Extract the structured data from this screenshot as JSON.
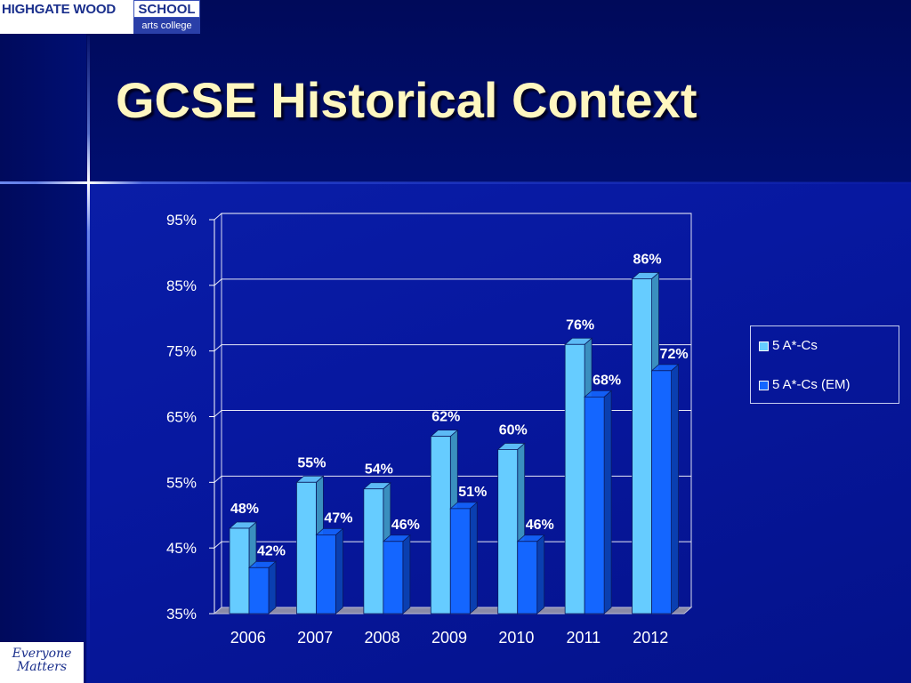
{
  "logo": {
    "main": "HIGHGATE WOOD",
    "school": "SCHOOL",
    "sub": "arts college"
  },
  "title": "GCSE Historical Context",
  "footer_logo": {
    "line1": "Everyone",
    "line2": "Matters"
  },
  "colors": {
    "series1_front": "#66ccff",
    "series1_side": "#3a8fbf",
    "series2_front": "#1466ff",
    "series2_side": "#0a3fb0",
    "label": "#ffffff",
    "gridline": "#ffffff"
  },
  "chart_data": {
    "type": "bar",
    "categories": [
      "2006",
      "2007",
      "2008",
      "2009",
      "2010",
      "2011",
      "2012"
    ],
    "series": [
      {
        "name": "5 A*-Cs",
        "values": [
          48,
          55,
          54,
          62,
          60,
          76,
          86
        ]
      },
      {
        "name": "5 A*-Cs (EM)",
        "values": [
          42,
          47,
          46,
          51,
          46,
          68,
          72
        ]
      }
    ],
    "data_labels": [
      [
        "48%",
        "55%",
        "54%",
        "62%",
        "60%",
        "76%",
        "86%"
      ],
      [
        "42%",
        "47%",
        "46%",
        "51%",
        "46%",
        "68%",
        "72%"
      ]
    ],
    "y_ticks": [
      "35%",
      "45%",
      "55%",
      "65%",
      "75%",
      "85%",
      "95%"
    ],
    "ylim": [
      35,
      95
    ],
    "grid": true,
    "legend_position": "right",
    "style": "3d-clustered-column"
  }
}
